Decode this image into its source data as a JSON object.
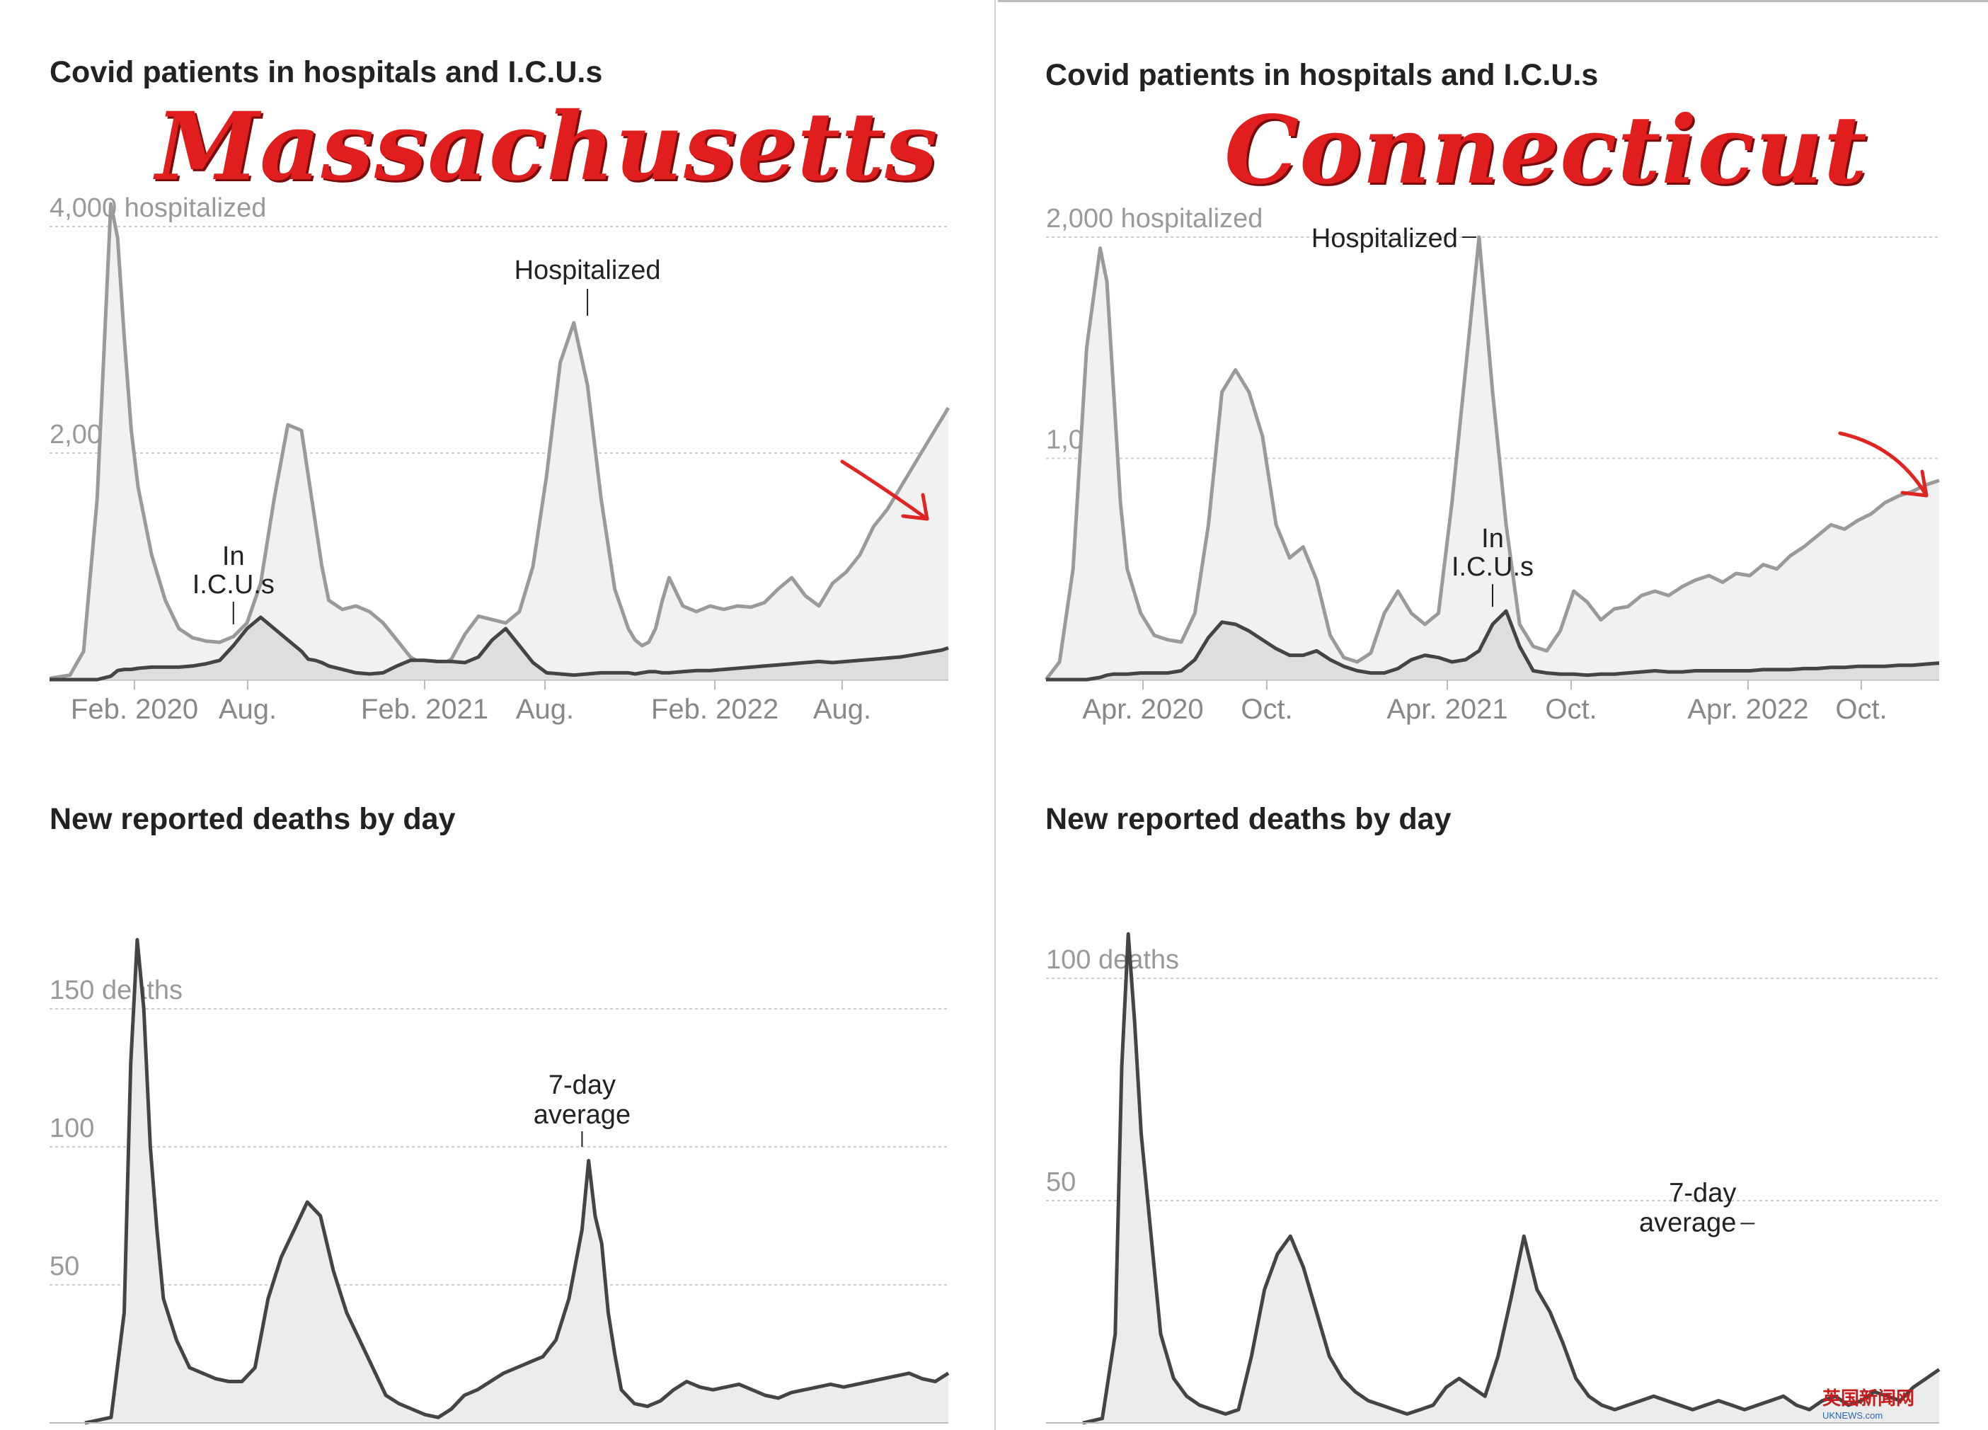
{
  "panels": [
    {
      "state": "Massachusetts",
      "hosp_title": "Covid patients in hospitals and I.C.U.s",
      "deaths_title": "New reported deaths by day",
      "hosp_chart": {
        "type": "area",
        "x_ticks": [
          "Feb. 2020",
          "Aug.",
          "Feb. 2021",
          "Aug.",
          "Feb. 2022",
          "Aug."
        ],
        "y_ticks": [
          {
            "value": 4000,
            "label": "4,000 hospitalized"
          },
          {
            "value": 2000,
            "label": "2,000"
          }
        ],
        "ylim": [
          0,
          4300
        ],
        "annotations": {
          "hospitalized": "Hospitalized",
          "icu_line1": "In",
          "icu_line2": "I.C.U.s"
        },
        "series": [
          {
            "name": "Hospitalized",
            "x": [
              0,
              3,
              5,
              7,
              9,
              10,
              11,
              12,
              13,
              15,
              17,
              19,
              21,
              23,
              25,
              27,
              29,
              31,
              33,
              35,
              37,
              38,
              39,
              40,
              41,
              43,
              45,
              47,
              49,
              51,
              53,
              55,
              57,
              59,
              61,
              63,
              65,
              67,
              69,
              71,
              73,
              75,
              77,
              79,
              81,
              83,
              85,
              86,
              87,
              88,
              89,
              90,
              91,
              93,
              95,
              97,
              99,
              101,
              103,
              105,
              107,
              109,
              111,
              113,
              115,
              117,
              119,
              121,
              123,
              125,
              127,
              129,
              131,
              132
            ],
            "values": [
              10,
              40,
              250,
              1600,
              4200,
              3900,
              3000,
              2200,
              1700,
              1100,
              700,
              450,
              370,
              340,
              330,
              380,
              500,
              850,
              1600,
              2250,
              2200,
              1800,
              1400,
              1000,
              700,
              620,
              650,
              600,
              500,
              350,
              200,
              130,
              110,
              180,
              400,
              560,
              530,
              500,
              600,
              1000,
              1800,
              2800,
              3150,
              2600,
              1600,
              800,
              450,
              350,
              300,
              330,
              450,
              700,
              900,
              650,
              600,
              650,
              620,
              650,
              640,
              680,
              800,
              900,
              740,
              650,
              850,
              950,
              1100,
              1350,
              1500,
              1700,
              1900,
              2100,
              2300,
              2400
            ],
            "icu_values": [
              0,
              0,
              0,
              0,
              30,
              80,
              90,
              90,
              100,
              110,
              110,
              110,
              120,
              140,
              170,
              300,
              450,
              550,
              450,
              350,
              250,
              180,
              170,
              150,
              120,
              90,
              60,
              50,
              60,
              120,
              170,
              170,
              160,
              160,
              150,
              200,
              350,
              450,
              300,
              150,
              60,
              50,
              40,
              50,
              60,
              60,
              60,
              50,
              60,
              70,
              70,
              60,
              60,
              70,
              80,
              80,
              90,
              100,
              110,
              120,
              130,
              140,
              150,
              160,
              150,
              160,
              170,
              180,
              190,
              200,
              220,
              240,
              260,
              280
            ]
          }
        ]
      },
      "deaths_chart": {
        "type": "area",
        "y_ticks": [
          {
            "value": 150,
            "label": "150 deaths"
          },
          {
            "value": 100,
            "label": "100"
          },
          {
            "value": 50,
            "label": "50"
          }
        ],
        "ylim": [
          0,
          175
        ],
        "annotation": "7-day\naverage",
        "series": [
          {
            "name": "7-day average",
            "x": [
              0,
              4,
              6,
              7,
              8,
              9,
              10,
              11,
              12,
              14,
              16,
              18,
              20,
              22,
              24,
              26,
              28,
              30,
              32,
              34,
              36,
              38,
              40,
              42,
              44,
              46,
              48,
              50,
              52,
              54,
              56,
              58,
              60,
              62,
              64,
              66,
              68,
              70,
              72,
              74,
              76,
              77,
              78,
              79,
              80,
              81,
              82,
              84,
              86,
              88,
              90,
              92,
              94,
              96,
              98,
              100,
              102,
              104,
              106,
              108,
              110,
              112,
              114,
              116,
              118,
              120,
              122,
              124,
              126,
              128,
              130,
              132
            ],
            "values": [
              0,
              2,
              40,
              130,
              175,
              150,
              100,
              70,
              45,
              30,
              20,
              18,
              16,
              15,
              15,
              20,
              45,
              60,
              70,
              80,
              75,
              55,
              40,
              30,
              20,
              10,
              7,
              5,
              3,
              2,
              5,
              10,
              12,
              15,
              18,
              20,
              22,
              24,
              30,
              45,
              70,
              95,
              75,
              65,
              40,
              25,
              12,
              7,
              6,
              8,
              12,
              15,
              13,
              12,
              13,
              14,
              12,
              10,
              9,
              11,
              12,
              13,
              14,
              13,
              14,
              15,
              16,
              17,
              18,
              16,
              15,
              18
            ]
          }
        ]
      }
    },
    {
      "state": "Connecticut",
      "hosp_title": "Covid patients in hospitals and I.C.U.s",
      "deaths_title": "New reported deaths by day",
      "hosp_chart": {
        "type": "area",
        "x_ticks": [
          "Apr. 2020",
          "Oct.",
          "Apr. 2021",
          "Oct.",
          "Apr. 2022",
          "Oct."
        ],
        "y_ticks": [
          {
            "value": 2000,
            "label": "2,000 hospitalized"
          },
          {
            "value": 1000,
            "label": "1,000"
          }
        ],
        "ylim": [
          0,
          2150
        ],
        "annotations": {
          "hospitalized": "Hospitalized",
          "icu_line1": "In",
          "icu_line2": "I.C.U.s"
        },
        "series": [
          {
            "name": "Hospitalized",
            "x": [
              0,
              2,
              4,
              6,
              8,
              9,
              10,
              11,
              12,
              14,
              16,
              18,
              20,
              22,
              24,
              26,
              28,
              30,
              32,
              34,
              36,
              38,
              40,
              42,
              44,
              46,
              48,
              50,
              52,
              54,
              56,
              58,
              60,
              62,
              64,
              66,
              68,
              70,
              72,
              74,
              76,
              78,
              80,
              82,
              84,
              86,
              88,
              90,
              92,
              94,
              96,
              98,
              100,
              102,
              104,
              106,
              108,
              110,
              112,
              114,
              116,
              118,
              120,
              122,
              124,
              126,
              128,
              130,
              132
            ],
            "values": [
              0,
              80,
              500,
              1500,
              1950,
              1800,
              1300,
              800,
              500,
              300,
              200,
              180,
              170,
              300,
              700,
              1300,
              1400,
              1300,
              1100,
              700,
              550,
              600,
              450,
              200,
              100,
              80,
              120,
              300,
              400,
              300,
              250,
              300,
              800,
              1400,
              2000,
              1300,
              700,
              250,
              150,
              130,
              220,
              400,
              350,
              270,
              320,
              330,
              380,
              400,
              380,
              420,
              450,
              470,
              440,
              480,
              470,
              520,
              500,
              560,
              600,
              650,
              700,
              680,
              720,
              750,
              800,
              830,
              850,
              880,
              900
            ],
            "icu_values": [
              0,
              0,
              0,
              0,
              10,
              20,
              25,
              25,
              25,
              30,
              30,
              30,
              40,
              90,
              190,
              260,
              250,
              220,
              180,
              140,
              110,
              110,
              130,
              90,
              60,
              40,
              30,
              30,
              50,
              90,
              110,
              100,
              80,
              90,
              130,
              250,
              310,
              150,
              40,
              30,
              25,
              25,
              20,
              25,
              25,
              30,
              35,
              40,
              35,
              35,
              40,
              40,
              40,
              40,
              40,
              45,
              45,
              45,
              50,
              50,
              55,
              55,
              60,
              60,
              60,
              65,
              65,
              70,
              75
            ]
          }
        ]
      },
      "deaths_chart": {
        "type": "area",
        "y_ticks": [
          {
            "value": 100,
            "label": "100 deaths"
          },
          {
            "value": 50,
            "label": "50"
          }
        ],
        "ylim": [
          0,
          115
        ],
        "annotation": "7-day\naverage",
        "series": [
          {
            "name": "7-day average",
            "x": [
              0,
              3,
              5,
              6,
              7,
              8,
              9,
              10,
              11,
              12,
              14,
              16,
              18,
              20,
              22,
              24,
              26,
              28,
              30,
              32,
              34,
              36,
              38,
              40,
              42,
              44,
              46,
              48,
              50,
              52,
              54,
              56,
              58,
              60,
              62,
              64,
              66,
              68,
              70,
              72,
              74,
              76,
              78,
              80,
              82,
              84,
              86,
              88,
              90,
              92,
              94,
              96,
              98,
              100,
              102,
              104,
              106,
              108,
              110,
              112,
              114,
              116,
              118,
              120,
              122,
              124,
              126,
              128,
              130,
              132
            ],
            "values": [
              0,
              1,
              20,
              80,
              110,
              90,
              65,
              50,
              35,
              20,
              10,
              6,
              4,
              3,
              2,
              3,
              15,
              30,
              38,
              42,
              35,
              25,
              15,
              10,
              7,
              5,
              4,
              3,
              2,
              3,
              4,
              8,
              10,
              8,
              6,
              15,
              28,
              42,
              30,
              25,
              18,
              10,
              6,
              4,
              3,
              4,
              5,
              6,
              5,
              4,
              3,
              4,
              5,
              4,
              3,
              4,
              5,
              6,
              4,
              3,
              5,
              6,
              4,
              5,
              7,
              6,
              5,
              8,
              10,
              12
            ]
          }
        ]
      }
    }
  ]
}
